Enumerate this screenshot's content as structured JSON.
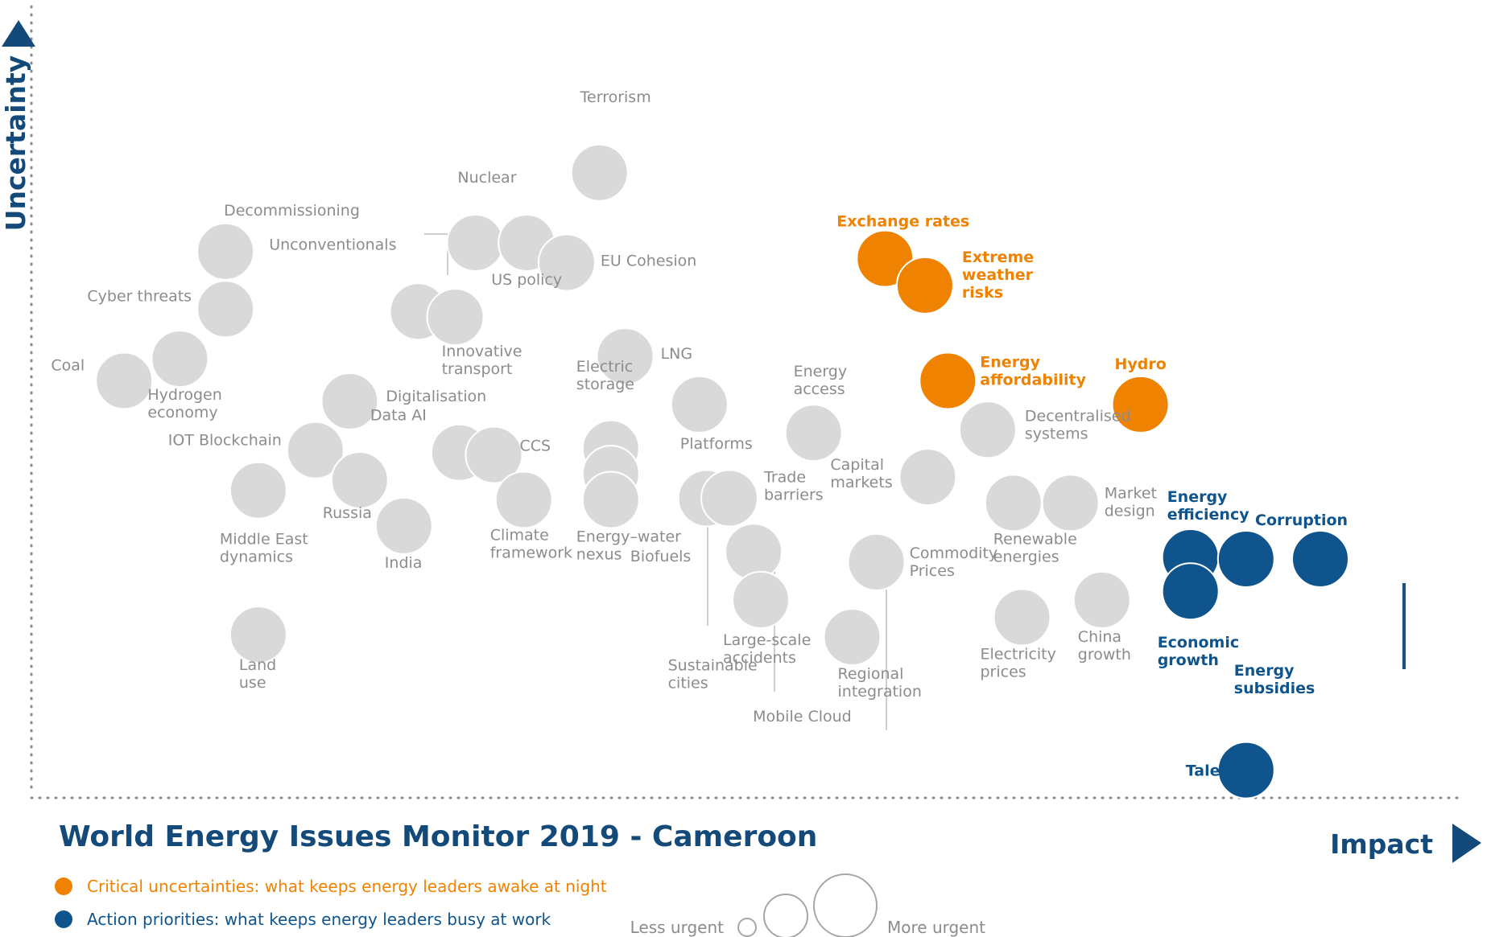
{
  "chart_data": {
    "type": "scatter",
    "title": "World Energy Issues Monitor 2019 - Cameroon",
    "xlabel": "Impact",
    "ylabel": "Uncertainty",
    "colors": {
      "grey_bubble": "#d9d9d9",
      "grey_text": "#8c8c8c",
      "orange": "#ef8200",
      "blue": "#0f548c",
      "dark_blue": "#134a79",
      "axis_dots": "#8a8a8a"
    },
    "legend": {
      "critical": "Critical uncertainties: what keeps energy leaders awake at night",
      "action": "Action priorities: what keeps energy leaders busy at work",
      "less_urgent": "Less urgent",
      "more_urgent": "More urgent"
    },
    "points": [
      {
        "name": "Terrorism",
        "x": 39.8,
        "y": 78.9,
        "group": "grey"
      },
      {
        "name": "Decommissioning",
        "x": 13.6,
        "y": 68.9,
        "group": "grey"
      },
      {
        "name": "Nuclear",
        "x": 31.1,
        "y": 70.0,
        "group": "grey"
      },
      {
        "name": "US policy",
        "x": 34.7,
        "y": 70.0,
        "group": "grey"
      },
      {
        "name": "EU Cohesion",
        "x": 37.5,
        "y": 67.5,
        "group": "grey"
      },
      {
        "name": "Unconventionals",
        "x": 27.1,
        "y": 61.3,
        "group": "grey"
      },
      {
        "name": "Innovative transport",
        "x": 29.7,
        "y": 60.6,
        "group": "grey"
      },
      {
        "name": "Cyber threats",
        "x": 13.6,
        "y": 61.6,
        "group": "grey"
      },
      {
        "name": "Hydrogen economy",
        "x": 10.4,
        "y": 55.3,
        "group": "grey"
      },
      {
        "name": "Coal",
        "x": 6.5,
        "y": 52.5,
        "group": "grey"
      },
      {
        "name": "LNG",
        "x": 41.6,
        "y": 55.6,
        "group": "grey"
      },
      {
        "name": "Digitalisation",
        "x": 22.3,
        "y": 49.9,
        "group": "grey"
      },
      {
        "name": "Platforms",
        "x": 46.8,
        "y": 49.5,
        "group": "grey"
      },
      {
        "name": "Electric storage",
        "x": 40.6,
        "y": 43.9,
        "group": "grey"
      },
      {
        "name": "Biofuels",
        "x": 40.6,
        "y": 40.7,
        "group": "grey"
      },
      {
        "name": "Energy–water nexus",
        "x": 40.6,
        "y": 37.4,
        "group": "grey"
      },
      {
        "name": "IOT Blockchain",
        "x": 19.9,
        "y": 43.7,
        "group": "grey"
      },
      {
        "name": "Data AI",
        "x": 30.0,
        "y": 43.4,
        "group": "grey"
      },
      {
        "name": "CCS",
        "x": 32.4,
        "y": 43.1,
        "group": "grey"
      },
      {
        "name": "Russia",
        "x": 23.0,
        "y": 39.9,
        "group": "grey"
      },
      {
        "name": "Middle East dynamics",
        "x": 15.9,
        "y": 38.6,
        "group": "grey"
      },
      {
        "name": "India",
        "x": 26.1,
        "y": 34.1,
        "group": "grey"
      },
      {
        "name": "Climate framework",
        "x": 34.5,
        "y": 37.4,
        "group": "grey"
      },
      {
        "name": "Energy access",
        "x": 54.8,
        "y": 45.9,
        "group": "grey"
      },
      {
        "name": "Sustainable cities",
        "x": 47.3,
        "y": 37.6,
        "group": "grey"
      },
      {
        "name": "Trade barriers",
        "x": 48.9,
        "y": 37.6,
        "group": "grey"
      },
      {
        "name": "Mobile Cloud",
        "x": 50.6,
        "y": 30.8,
        "group": "grey"
      },
      {
        "name": "Large-scale accidents",
        "x": 51.1,
        "y": 24.7,
        "group": "grey"
      },
      {
        "name": "Capital markets",
        "x": 62.8,
        "y": 40.3,
        "group": "grey"
      },
      {
        "name": "Commodity Prices",
        "x": 59.2,
        "y": 29.5,
        "group": "grey"
      },
      {
        "name": "Regional integration",
        "x": 57.5,
        "y": 20.0,
        "group": "grey"
      },
      {
        "name": "Decentralised systems",
        "x": 67.0,
        "y": 46.3,
        "group": "grey"
      },
      {
        "name": "Renewable energies",
        "x": 68.8,
        "y": 37.0,
        "group": "grey"
      },
      {
        "name": "Market design",
        "x": 72.8,
        "y": 37.0,
        "group": "grey"
      },
      {
        "name": "Electricity prices",
        "x": 69.4,
        "y": 22.5,
        "group": "grey"
      },
      {
        "name": "China growth",
        "x": 75.0,
        "y": 24.7,
        "group": "grey"
      },
      {
        "name": "Land use",
        "x": 15.9,
        "y": 20.3,
        "group": "grey"
      },
      {
        "name": "Exchange rates",
        "x": 59.8,
        "y": 68.0,
        "group": "orange"
      },
      {
        "name": "Extreme weather risks",
        "x": 62.6,
        "y": 64.6,
        "group": "orange"
      },
      {
        "name": "Energy affordability",
        "x": 64.2,
        "y": 52.5,
        "group": "orange"
      },
      {
        "name": "Hydro",
        "x": 77.7,
        "y": 49.5,
        "group": "orange"
      },
      {
        "name": "Energy efficiency",
        "x": 81.2,
        "y": 30.1,
        "group": "blue"
      },
      {
        "name": "Economic growth",
        "x": 81.2,
        "y": 25.8,
        "group": "blue"
      },
      {
        "name": "Energy subsidies",
        "x": 85.1,
        "y": 29.9,
        "group": "blue"
      },
      {
        "name": "Corruption",
        "x": 90.3,
        "y": 29.9,
        "group": "blue"
      },
      {
        "name": "Talent",
        "x": 85.1,
        "y": 3.1,
        "group": "blue"
      }
    ]
  }
}
